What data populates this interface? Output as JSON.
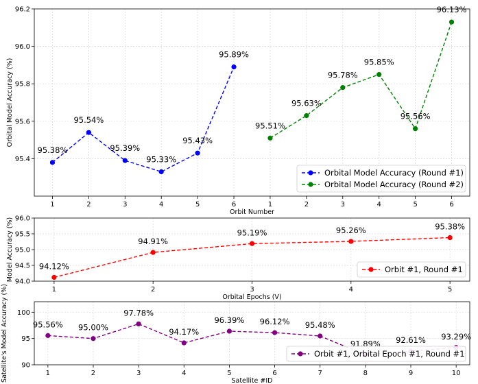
{
  "chart_data": [
    {
      "type": "line",
      "xlabel": "Orbit Number",
      "ylabel": "Orbital Model Accuracy (%)",
      "ylim": [
        95.2,
        96.2
      ],
      "yticks": [
        "95.4",
        "95.6",
        "95.8",
        "96.0",
        "96.2"
      ],
      "ytick_values": [
        95.4,
        95.6,
        95.8,
        96.0,
        96.2
      ],
      "xtick_labels": [
        "1",
        "2",
        "3",
        "4",
        "5",
        "6",
        "1",
        "2",
        "3",
        "4",
        "5",
        "6"
      ],
      "grid": true,
      "legend_position": "lower-right",
      "series": [
        {
          "name": "Orbital Model Accuracy (Round #1)",
          "color": "#0000ff",
          "values": [
            95.38,
            95.54,
            95.39,
            95.33,
            95.43,
            95.89
          ],
          "labels": [
            "95.38%",
            "95.54%",
            "95.39%",
            "95.33%",
            "95.43%",
            "95.89%"
          ]
        },
        {
          "name": "Orbital Model Accuracy (Round #2)",
          "color": "#008000",
          "values": [
            95.51,
            95.63,
            95.78,
            95.85,
            95.56,
            96.13
          ],
          "labels": [
            "95.51%",
            "95.63%",
            "95.78%",
            "95.85%",
            "95.56%",
            "96.13%"
          ]
        }
      ]
    },
    {
      "type": "line",
      "xlabel": "Orbital Epochs (V)",
      "ylabel": "Model Accuracy (%)",
      "ylim": [
        94.0,
        96.0
      ],
      "yticks": [
        "94.0",
        "94.5",
        "95.0",
        "95.5",
        "96.0"
      ],
      "ytick_values": [
        94.0,
        94.5,
        95.0,
        95.5,
        96.0
      ],
      "xtick_labels": [
        "1",
        "2",
        "3",
        "4",
        "5"
      ],
      "grid": true,
      "legend_position": "lower-right",
      "series": [
        {
          "name": "Orbit #1, Round #1",
          "color": "#ff0000",
          "values": [
            94.12,
            94.91,
            95.19,
            95.26,
            95.38
          ],
          "labels": [
            "94.12%",
            "94.91%",
            "95.19%",
            "95.26%",
            "95.38%"
          ]
        }
      ]
    },
    {
      "type": "line",
      "xlabel": "Satellite #ID",
      "ylabel": "Satellite's Model Accuracy (%)",
      "ylim": [
        90,
        102
      ],
      "yticks": [
        "90",
        "95",
        "100"
      ],
      "ytick_values": [
        90,
        95,
        100
      ],
      "xtick_labels": [
        "1",
        "2",
        "3",
        "4",
        "5",
        "6",
        "7",
        "8",
        "9",
        "10"
      ],
      "grid": true,
      "legend_position": "lower-right",
      "series": [
        {
          "name": "Orbit #1, Orbital Epoch #1, Round #1",
          "color": "#800080",
          "values": [
            95.56,
            95.0,
            97.78,
            94.17,
            96.39,
            96.12,
            95.48,
            91.89,
            92.61,
            93.29
          ],
          "labels": [
            "95.56%",
            "95.00%",
            "97.78%",
            "94.17%",
            "96.39%",
            "96.12%",
            "95.48%",
            "91.89%",
            "92.61%",
            "93.29%"
          ]
        }
      ]
    }
  ]
}
